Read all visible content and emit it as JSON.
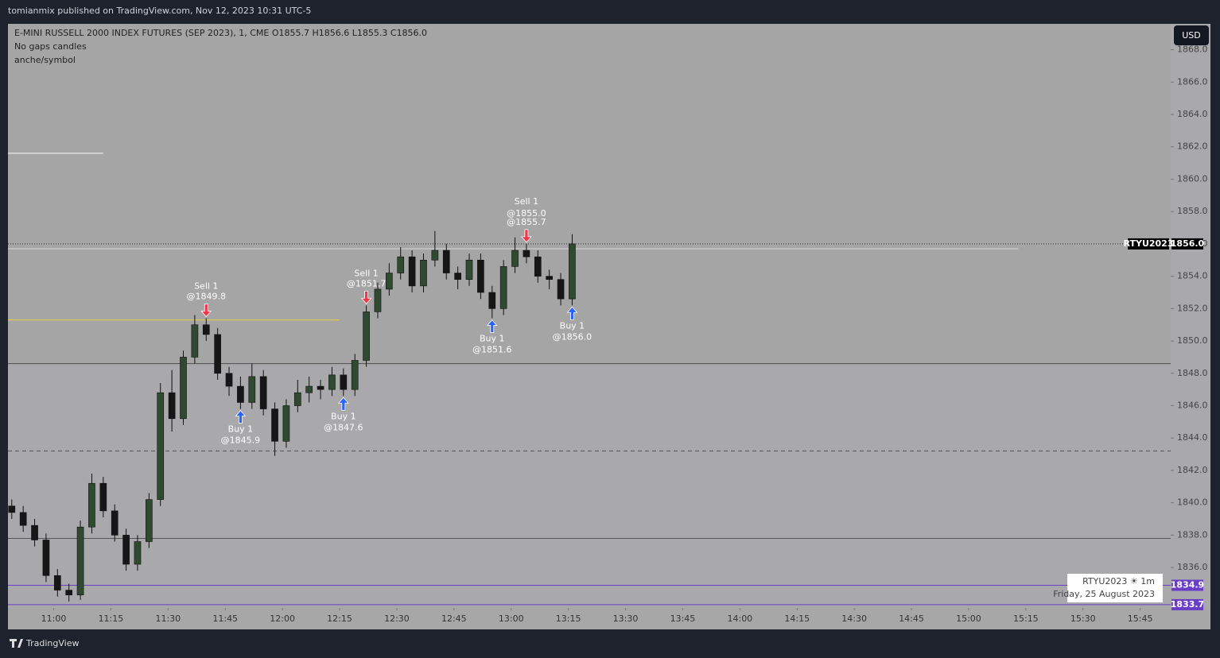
{
  "header": {
    "publisher": "tomianmix published on TradingView.com, Nov 12, 2023 10:31 UTC-5",
    "brand": "TradingView",
    "currency_button": "USD"
  },
  "chart_data": {
    "type": "candlestick",
    "title": "E-MINI RUSSELL 2000 INDEX FUTURES (SEP 2023), 1, CME  O1855.7  H1856.6  L1855.3  C1856.0",
    "subtitle_lines": [
      "No gaps candles",
      "anche/symbol"
    ],
    "x": [
      "10:49",
      "10:52",
      "10:55",
      "10:58",
      "11:01",
      "11:04",
      "11:07",
      "11:10",
      "11:13",
      "11:16",
      "11:19",
      "11:22",
      "11:25",
      "11:28",
      "11:31",
      "11:34",
      "11:37",
      "11:40",
      "11:43",
      "11:46",
      "11:49",
      "11:52",
      "11:55",
      "11:58",
      "12:01",
      "12:04",
      "12:07",
      "12:10",
      "12:13",
      "12:16",
      "12:19",
      "12:22",
      "12:25",
      "12:28",
      "12:31",
      "12:34",
      "12:37",
      "12:40",
      "12:43",
      "12:46",
      "12:49",
      "12:52",
      "12:55",
      "12:58",
      "13:01",
      "13:04",
      "13:07",
      "13:10",
      "13:13",
      "13:16"
    ],
    "open": [
      1839.8,
      1839.4,
      1838.6,
      1837.7,
      1835.5,
      1834.6,
      1834.3,
      1838.5,
      1841.2,
      1839.5,
      1838.0,
      1836.2,
      1837.6,
      1840.2,
      1846.8,
      1845.2,
      1849.0,
      1851.0,
      1850.4,
      1848.0,
      1847.2,
      1846.2,
      1847.8,
      1845.8,
      1843.8,
      1846.0,
      1846.8,
      1847.2,
      1847.0,
      1847.9,
      1847.0,
      1848.8,
      1851.8,
      1853.2,
      1854.2,
      1855.2,
      1853.4,
      1855.0,
      1855.6,
      1854.2,
      1853.8,
      1855.0,
      1853.0,
      1852.0,
      1854.6,
      1855.6,
      1855.2,
      1854.0,
      1853.8,
      1852.6
    ],
    "high": [
      1840.2,
      1839.8,
      1839.0,
      1838.1,
      1835.9,
      1835.0,
      1838.9,
      1841.8,
      1841.6,
      1839.9,
      1838.4,
      1838.0,
      1840.6,
      1847.4,
      1848.2,
      1849.4,
      1851.6,
      1851.4,
      1850.8,
      1848.4,
      1847.8,
      1848.6,
      1848.2,
      1846.2,
      1846.4,
      1847.6,
      1847.8,
      1847.6,
      1848.4,
      1848.3,
      1849.2,
      1852.2,
      1853.6,
      1854.8,
      1855.8,
      1855.6,
      1855.4,
      1856.8,
      1856.0,
      1854.6,
      1855.4,
      1855.4,
      1853.4,
      1855.0,
      1856.4,
      1856.0,
      1855.6,
      1854.4,
      1854.2,
      1856.6
    ],
    "low": [
      1839.0,
      1838.2,
      1837.3,
      1835.1,
      1834.2,
      1833.9,
      1834.0,
      1838.1,
      1839.1,
      1837.6,
      1835.8,
      1835.8,
      1837.2,
      1839.8,
      1844.4,
      1844.8,
      1848.6,
      1850.0,
      1847.6,
      1846.6,
      1845.8,
      1845.8,
      1845.4,
      1842.9,
      1843.4,
      1845.6,
      1846.2,
      1846.4,
      1846.6,
      1846.6,
      1846.6,
      1848.4,
      1851.4,
      1852.8,
      1853.8,
      1853.0,
      1853.0,
      1854.6,
      1853.8,
      1853.2,
      1853.4,
      1852.6,
      1851.4,
      1851.6,
      1854.2,
      1854.8,
      1853.6,
      1853.2,
      1852.2,
      1852.2
    ],
    "close": [
      1839.4,
      1838.6,
      1837.7,
      1835.5,
      1834.6,
      1834.3,
      1838.5,
      1841.2,
      1839.5,
      1838.0,
      1836.2,
      1837.6,
      1840.2,
      1846.8,
      1845.2,
      1849.0,
      1851.0,
      1850.4,
      1848.0,
      1847.2,
      1846.2,
      1847.8,
      1845.8,
      1843.8,
      1846.0,
      1846.8,
      1847.2,
      1847.0,
      1847.9,
      1847.0,
      1848.8,
      1851.8,
      1853.2,
      1854.2,
      1855.2,
      1853.4,
      1855.0,
      1855.6,
      1854.2,
      1853.8,
      1855.0,
      1853.0,
      1852.0,
      1854.6,
      1855.6,
      1855.2,
      1854.0,
      1853.8,
      1852.6,
      1856.0
    ],
    "up_color": "#2f4a30",
    "down_color": "#161616",
    "xlim": [
      "10:48",
      "15:53"
    ],
    "xticks": [
      "11:00",
      "11:15",
      "11:30",
      "11:45",
      "12:00",
      "12:15",
      "12:30",
      "12:45",
      "13:00",
      "13:15",
      "13:30",
      "13:45",
      "14:00",
      "14:15",
      "14:30",
      "14:45",
      "15:00",
      "15:15",
      "15:30",
      "15:45"
    ],
    "ylim": [
      1833.5,
      1869.6
    ],
    "yticks": [
      {
        "value": 1836,
        "label": "1836.0"
      },
      {
        "value": 1838,
        "label": "1838.0"
      },
      {
        "value": 1840,
        "label": "1840.0"
      },
      {
        "value": 1842,
        "label": "1842.0"
      },
      {
        "value": 1844,
        "label": "1844.0"
      },
      {
        "value": 1846,
        "label": "1846.0"
      },
      {
        "value": 1848,
        "label": "1848.0"
      },
      {
        "value": 1850,
        "label": "1850.0"
      },
      {
        "value": 1852,
        "label": "1852.0"
      },
      {
        "value": 1854,
        "label": "1854.0"
      },
      {
        "value": 1856,
        "label": "1856.0"
      },
      {
        "value": 1858,
        "label": "1858.0"
      },
      {
        "value": 1860,
        "label": "1860.0"
      },
      {
        "value": 1862,
        "label": "1862.0"
      },
      {
        "value": 1864,
        "label": "1864.0"
      },
      {
        "value": 1866,
        "label": "1866.0"
      },
      {
        "value": 1868,
        "label": "1868.0"
      }
    ],
    "levels": [
      {
        "value": 1861.6,
        "color": "#ffffff",
        "style": "solid",
        "end": "11:13"
      },
      {
        "value": 1855.7,
        "color": "#d8d8d8",
        "style": "solid",
        "end": "15:13"
      },
      {
        "value": 1856.0,
        "color": "#333333",
        "style": "dotted",
        "end": "15:53"
      },
      {
        "value": 1851.3,
        "color": "#e8d040",
        "style": "solid",
        "end": "12:15"
      },
      {
        "value": 1848.6,
        "color": "#555555",
        "style": "solid",
        "end": "15:53"
      },
      {
        "value": 1843.2,
        "color": "#555555",
        "style": "dashed",
        "end": "15:53"
      },
      {
        "value": 1837.8,
        "color": "#555555",
        "style": "solid",
        "end": "15:53"
      },
      {
        "value": 1834.9,
        "color": "#6a3dc8",
        "style": "solid",
        "end": "15:53"
      },
      {
        "value": 1833.7,
        "color": "#6a3dc8",
        "style": "solid",
        "end": "15:53"
      }
    ],
    "price_tags": [
      {
        "value": 1856.0,
        "label": "1856.0",
        "name": "RTYU2023",
        "color": "#000000"
      },
      {
        "value": 1834.9,
        "label": "1834.9",
        "color": "#6a3dc8"
      },
      {
        "value": 1833.7,
        "label": "1833.7",
        "color": "#6a3dc8"
      }
    ],
    "trades": [
      {
        "x": "11:40",
        "side": "Sell 1",
        "values": [
          1849.8
        ],
        "value_labels": [
          "@1849.8"
        ]
      },
      {
        "x": "11:49",
        "side": "Buy 1",
        "values": [
          1845.9
        ],
        "value_labels": [
          "@1845.9"
        ]
      },
      {
        "x": "12:16",
        "side": "Buy 1",
        "values": [
          1847.6
        ],
        "value_labels": [
          "@1847.6"
        ]
      },
      {
        "x": "12:22",
        "side": "Sell 1",
        "values": [
          1851.7
        ],
        "value_labels": [
          "@1851.7"
        ]
      },
      {
        "x": "12:55",
        "side": "Buy 1",
        "values": [
          1851.6
        ],
        "value_labels": [
          "@1851.6"
        ]
      },
      {
        "x": "13:04",
        "side": "Sell 1",
        "values": [
          1855.0,
          1855.7
        ],
        "value_labels": [
          "@1855.0",
          "@1855.7"
        ]
      },
      {
        "x": "13:16",
        "side": "Buy 1",
        "values": [
          1856.0
        ],
        "value_labels": [
          "@1856.0"
        ]
      }
    ],
    "info_box": {
      "symbol": "RTYU2023 ☀ 1m",
      "date": "Friday, 25 August 2023"
    }
  }
}
